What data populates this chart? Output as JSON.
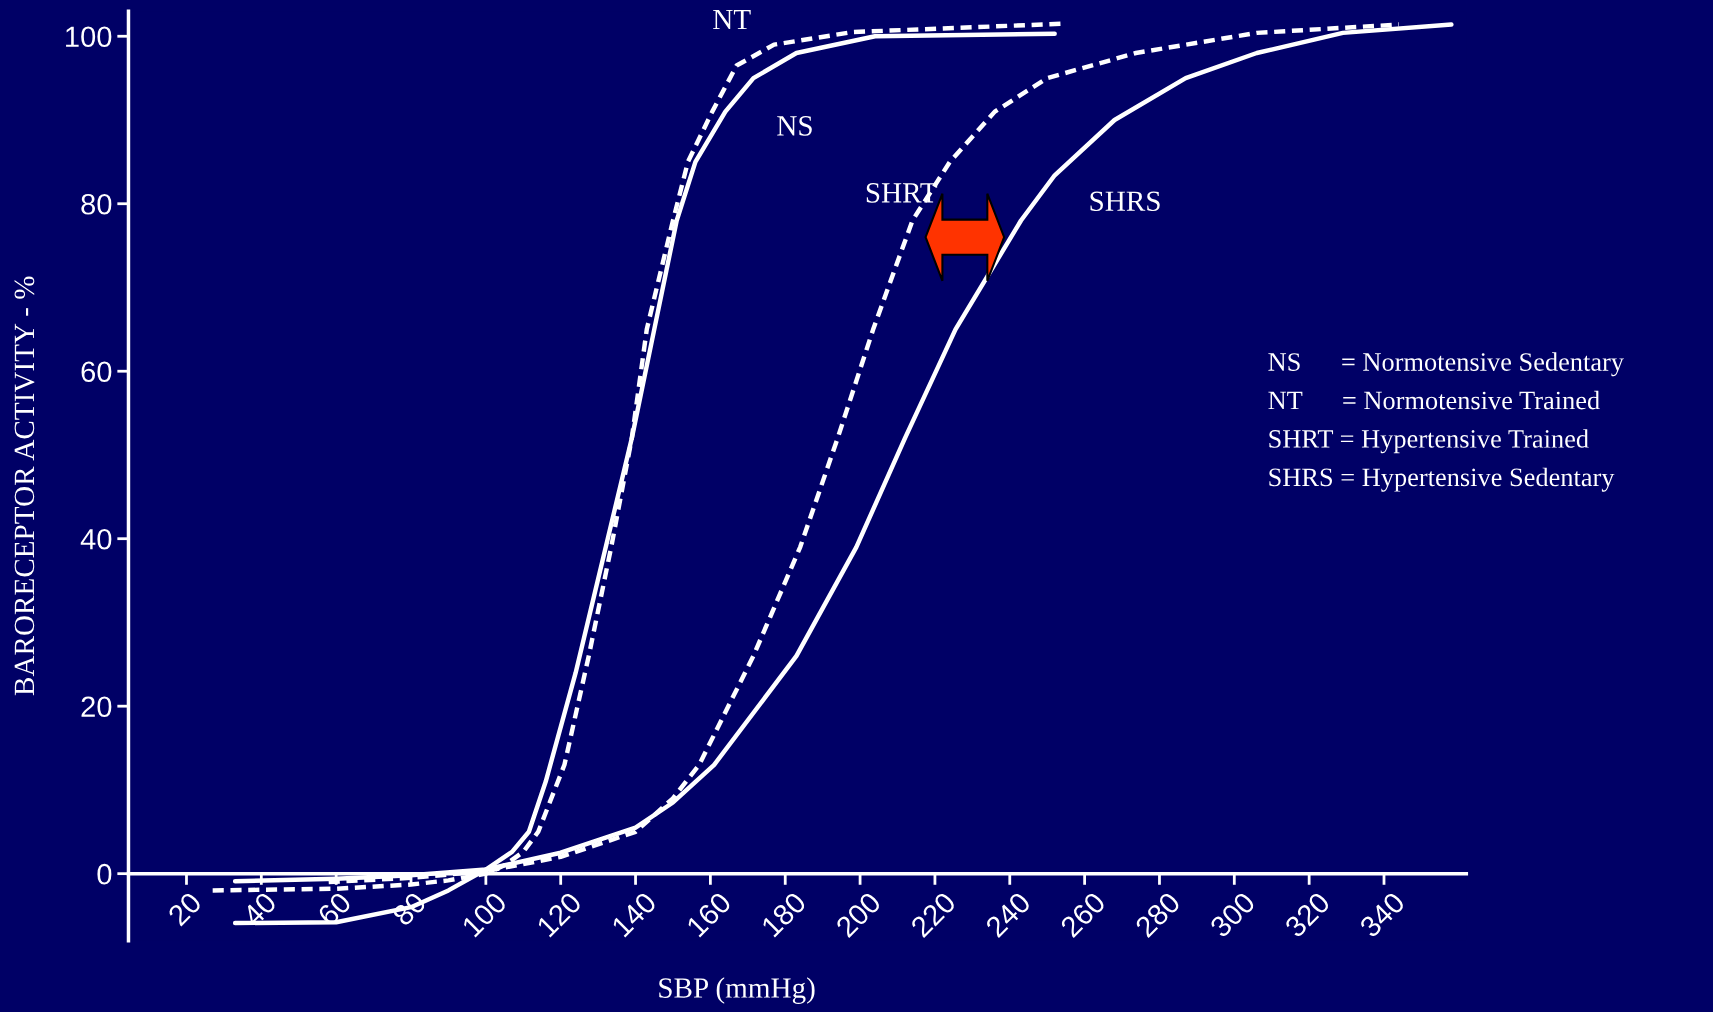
{
  "chart_data": {
    "type": "line",
    "xlabel": "SBP (mmHg)",
    "ylabel": "BARORECEPTOR ACTIVITY - %",
    "xlim": [
      4.5,
      362
    ],
    "ylim": [
      -8,
      103
    ],
    "xticks": [
      20,
      40,
      60,
      80,
      100,
      120,
      140,
      160,
      180,
      200,
      220,
      240,
      260,
      280,
      300,
      320,
      340
    ],
    "yticks": [
      0,
      20,
      40,
      60,
      80,
      100
    ],
    "grid": false,
    "legend": false,
    "marker": "none",
    "series": [
      {
        "name": "NS",
        "color": "#ffffff",
        "line_style": "solid",
        "x": [
          33,
          60,
          80,
          90,
          100,
          107,
          111.5,
          116,
          124,
          131.5,
          139,
          145,
          151,
          156,
          164,
          171.5,
          183,
          204,
          252
        ],
        "values": [
          -5.9,
          -5.8,
          -4,
          -2,
          0.5,
          2.6,
          5,
          11,
          24,
          38,
          52,
          65,
          78,
          85,
          91,
          95,
          98,
          100,
          100.3
        ]
      },
      {
        "name": "NT",
        "color": "#ffffff",
        "line_style": "dashed",
        "x": [
          27,
          60,
          80,
          90,
          100,
          105,
          110,
          114,
          121,
          127.5,
          133.5,
          139,
          143,
          150,
          154,
          160.5,
          167,
          177,
          198,
          254
        ],
        "values": [
          -2,
          -1.8,
          -1.3,
          -0.8,
          0,
          1,
          2.6,
          5,
          13,
          26,
          39,
          52,
          65,
          78,
          85,
          91,
          96.5,
          99,
          100.5,
          101.5
        ]
      },
      {
        "name": "SHRT",
        "color": "#ffffff",
        "line_style": "dashed",
        "x": [
          58,
          80,
          100,
          120,
          140,
          150,
          157,
          171.5,
          184,
          194,
          203.5,
          214,
          224,
          236,
          250,
          273.7,
          306,
          344
        ],
        "values": [
          -1,
          -0.5,
          0.3,
          2,
          5,
          9,
          13,
          26,
          39,
          52,
          65,
          78,
          85,
          91,
          95,
          98,
          100.4,
          101.4
        ]
      },
      {
        "name": "SHRS",
        "color": "#ffffff",
        "line_style": "solid",
        "x": [
          33,
          60,
          80,
          100,
          120,
          140,
          150,
          161,
          183,
          199,
          212,
          225.5,
          243,
          252,
          268,
          287,
          306,
          329,
          358
        ],
        "values": [
          -0.9,
          -0.6,
          -0.2,
          0.5,
          2.5,
          5.5,
          8.5,
          13,
          26,
          39,
          52,
          65,
          78,
          83.4,
          90,
          95,
          98,
          100.4,
          101.4
        ]
      }
    ],
    "annotations": [
      "NS      = Normotensive Sedentary",
      "NT      = Normotensive Trained",
      "SHRT = Hypertensive Trained",
      "SHRS = Hypertensive Sedentary"
    ]
  }
}
